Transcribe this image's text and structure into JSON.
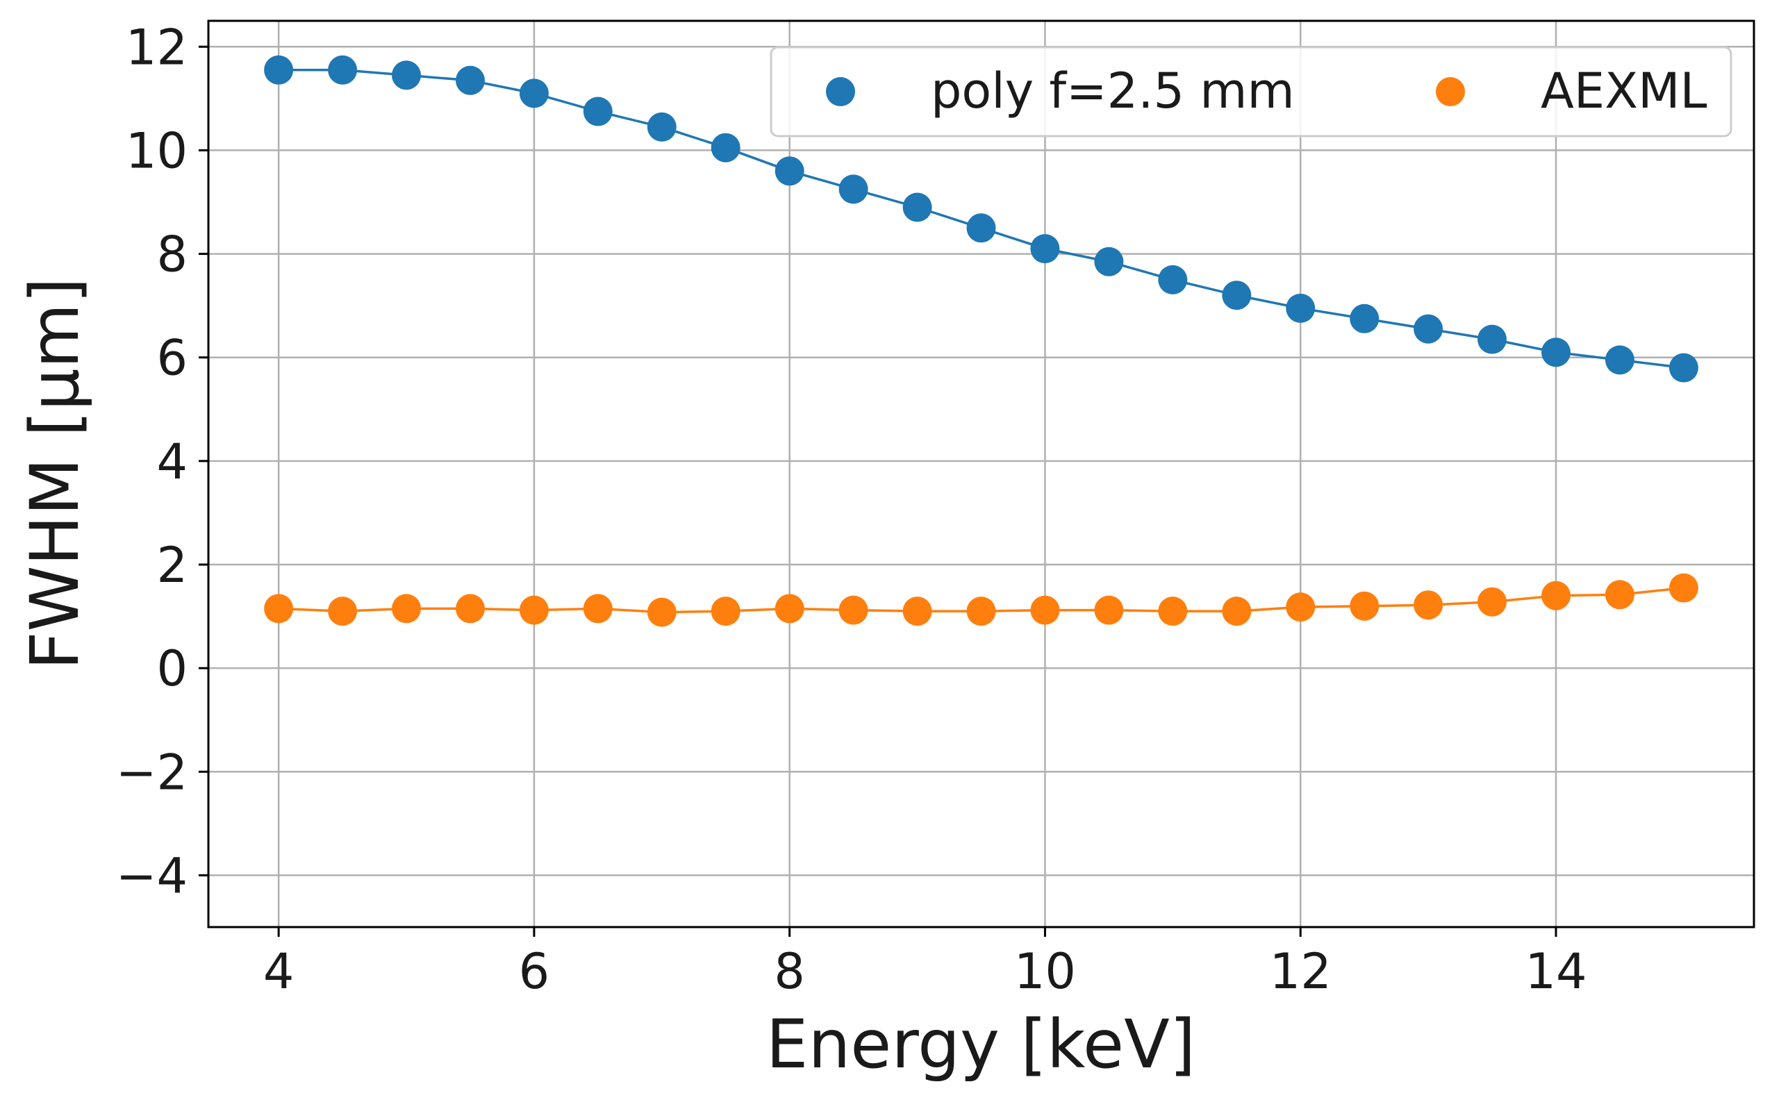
{
  "chart_data": {
    "type": "line",
    "title": "",
    "xlabel": "Energy [keV]",
    "ylabel": "FWHM [μm]",
    "xlim": [
      3.45,
      15.55
    ],
    "ylim": [
      -5,
      12.5
    ],
    "xticks": [
      4,
      6,
      8,
      10,
      12,
      14
    ],
    "yticks": [
      -4,
      -2,
      0,
      2,
      4,
      6,
      8,
      10,
      12
    ],
    "ytick_labels": [
      "−4",
      "−2",
      "0",
      "2",
      "4",
      "6",
      "8",
      "10",
      "12"
    ],
    "grid": true,
    "legend_position": "top-right",
    "legend_columns": 2,
    "x": [
      4,
      4.5,
      5,
      5.5,
      6,
      6.5,
      7,
      7.5,
      8,
      8.5,
      9,
      9.5,
      10,
      10.5,
      11,
      11.5,
      12,
      12.5,
      13,
      13.5,
      14,
      14.5,
      15
    ],
    "series": [
      {
        "name": "poly f=2.5 mm",
        "color": "#1f77b4",
        "values": [
          11.55,
          11.55,
          11.45,
          11.35,
          11.1,
          10.75,
          10.45,
          10.05,
          9.6,
          9.25,
          8.9,
          8.5,
          8.1,
          7.85,
          7.5,
          7.2,
          6.95,
          6.75,
          6.55,
          6.35,
          6.1,
          5.95,
          5.8
        ]
      },
      {
        "name": "AEXML",
        "color": "#ff7f0e",
        "values": [
          1.15,
          1.1,
          1.15,
          1.15,
          1.12,
          1.15,
          1.08,
          1.1,
          1.15,
          1.12,
          1.1,
          1.1,
          1.12,
          1.12,
          1.1,
          1.1,
          1.18,
          1.2,
          1.22,
          1.28,
          1.4,
          1.42,
          1.55
        ]
      }
    ]
  }
}
